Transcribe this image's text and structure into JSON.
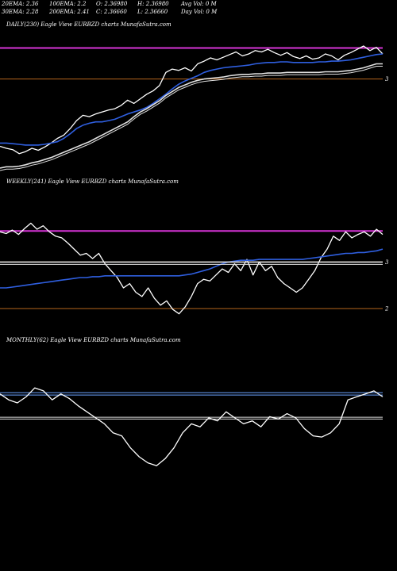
{
  "header": {
    "row1": [
      {
        "name": "ema20",
        "text": "20EMA: 2.36"
      },
      {
        "name": "ema100",
        "text": "100EMA: 2.2"
      },
      {
        "name": "open",
        "text": "O: 2.36980"
      },
      {
        "name": "high",
        "text": "H: 2.36980"
      },
      {
        "name": "avg-vol",
        "text": "Avg Vol: 0  M"
      }
    ],
    "row2": [
      {
        "name": "ema30",
        "text": "30EMA: 2.28"
      },
      {
        "name": "ema200",
        "text": "200EMA: 2.41"
      },
      {
        "name": "close",
        "text": "C: 2.36660"
      },
      {
        "name": "low",
        "text": "L: 2.36660"
      },
      {
        "name": "day-vol",
        "text": "Day Vol: 0  M"
      }
    ]
  },
  "colors": {
    "background": "#000000",
    "price": "#ffffff",
    "ema_blue": "#2f5fe0",
    "ema_white": "#e0e0e0",
    "resistance": "#d633d6",
    "support": "#b5651d",
    "monthly_band": "#6aa3ff"
  },
  "chart_data": [
    {
      "type": "line",
      "panel": "daily",
      "title": "DAILY(230) Eagle   View  EURBZD charts MunafaSutra.com",
      "ylim": [
        1.6,
        3.45
      ],
      "ticks": [
        {
          "value": 2.95,
          "label": "3"
        }
      ],
      "hlines": [
        {
          "value": 3.42,
          "color": "resistance"
        },
        {
          "value": 2.95,
          "color": "support"
        }
      ],
      "series": [
        {
          "role": "price",
          "color": "price",
          "values": [
            1.93,
            1.9,
            1.88,
            1.82,
            1.85,
            1.9,
            1.87,
            1.92,
            1.98,
            2.05,
            2.1,
            2.2,
            2.32,
            2.4,
            2.38,
            2.42,
            2.45,
            2.48,
            2.5,
            2.55,
            2.63,
            2.58,
            2.65,
            2.72,
            2.77,
            2.85,
            3.05,
            3.1,
            3.08,
            3.12,
            3.07,
            3.18,
            3.22,
            3.27,
            3.24,
            3.28,
            3.32,
            3.36,
            3.3,
            3.33,
            3.38,
            3.36,
            3.4,
            3.35,
            3.31,
            3.35,
            3.29,
            3.26,
            3.3,
            3.25,
            3.27,
            3.33,
            3.3,
            3.24,
            3.31,
            3.35,
            3.4,
            3.45,
            3.38,
            3.43,
            3.33
          ]
        },
        {
          "role": "ema-short",
          "color": "ema_blue",
          "values": [
            1.98,
            1.98,
            1.97,
            1.96,
            1.95,
            1.95,
            1.95,
            1.96,
            1.98,
            2.0,
            2.05,
            2.12,
            2.2,
            2.25,
            2.28,
            2.3,
            2.3,
            2.32,
            2.34,
            2.38,
            2.42,
            2.45,
            2.48,
            2.52,
            2.58,
            2.65,
            2.72,
            2.8,
            2.87,
            2.92,
            2.96,
            3.0,
            3.05,
            3.08,
            3.1,
            3.12,
            3.13,
            3.14,
            3.15,
            3.16,
            3.18,
            3.19,
            3.2,
            3.2,
            3.21,
            3.21,
            3.2,
            3.2,
            3.2,
            3.2,
            3.21,
            3.21,
            3.22,
            3.22,
            3.23,
            3.24,
            3.26,
            3.28,
            3.3,
            3.32,
            3.33
          ]
        },
        {
          "role": "ema-long",
          "color": "ema_white",
          "values": [
            1.6,
            1.62,
            1.62,
            1.63,
            1.65,
            1.68,
            1.7,
            1.73,
            1.76,
            1.8,
            1.84,
            1.88,
            1.92,
            1.96,
            2.0,
            2.05,
            2.1,
            2.15,
            2.2,
            2.25,
            2.3,
            2.38,
            2.45,
            2.5,
            2.56,
            2.62,
            2.7,
            2.76,
            2.82,
            2.86,
            2.9,
            2.93,
            2.95,
            2.96,
            2.97,
            2.98,
            3.0,
            3.01,
            3.02,
            3.02,
            3.03,
            3.03,
            3.04,
            3.04,
            3.04,
            3.05,
            3.05,
            3.05,
            3.05,
            3.05,
            3.05,
            3.06,
            3.06,
            3.06,
            3.07,
            3.08,
            3.1,
            3.12,
            3.15,
            3.18,
            3.18
          ]
        }
      ]
    },
    {
      "type": "line",
      "panel": "weekly",
      "title": "WEEKLY(241) Eagle   View  EURBZD charts MunafaSutra.com",
      "ylim": [
        1.85,
        3.1
      ],
      "ticks": [
        {
          "value": 2.6,
          "label": "3"
        },
        {
          "value": 2.06,
          "label": "2"
        }
      ],
      "hlines": [
        {
          "value": 2.96,
          "color": "resistance"
        },
        {
          "value": 2.6,
          "color": "support"
        },
        {
          "value": 2.06,
          "color": "support"
        }
      ],
      "series": [
        {
          "role": "price",
          "color": "price",
          "values": [
            2.95,
            2.93,
            2.97,
            2.92,
            2.99,
            3.05,
            2.98,
            3.02,
            2.95,
            2.9,
            2.88,
            2.82,
            2.75,
            2.68,
            2.7,
            2.64,
            2.7,
            2.58,
            2.5,
            2.42,
            2.3,
            2.35,
            2.25,
            2.2,
            2.3,
            2.18,
            2.1,
            2.15,
            2.05,
            2.0,
            2.08,
            2.2,
            2.35,
            2.4,
            2.38,
            2.45,
            2.52,
            2.48,
            2.58,
            2.5,
            2.63,
            2.45,
            2.6,
            2.5,
            2.55,
            2.42,
            2.35,
            2.3,
            2.25,
            2.3,
            2.4,
            2.5,
            2.65,
            2.75,
            2.9,
            2.85,
            2.95,
            2.88,
            2.92,
            2.95,
            2.9,
            2.98,
            2.92
          ]
        },
        {
          "role": "ema-short",
          "color": "ema_blue",
          "values": [
            2.3,
            2.3,
            2.31,
            2.32,
            2.33,
            2.34,
            2.35,
            2.36,
            2.37,
            2.38,
            2.39,
            2.4,
            2.41,
            2.42,
            2.42,
            2.43,
            2.43,
            2.44,
            2.44,
            2.44,
            2.44,
            2.44,
            2.44,
            2.44,
            2.44,
            2.44,
            2.44,
            2.44,
            2.44,
            2.44,
            2.45,
            2.46,
            2.48,
            2.5,
            2.52,
            2.55,
            2.58,
            2.6,
            2.61,
            2.62,
            2.62,
            2.62,
            2.63,
            2.63,
            2.63,
            2.63,
            2.63,
            2.63,
            2.63,
            2.63,
            2.64,
            2.65,
            2.66,
            2.67,
            2.68,
            2.69,
            2.7,
            2.7,
            2.71,
            2.71,
            2.72,
            2.73,
            2.75
          ]
        },
        {
          "role": "ema-long",
          "color": "ema_white",
          "values": [
            2.6,
            2.6,
            2.6,
            2.6,
            2.6,
            2.6,
            2.6,
            2.6,
            2.6,
            2.6,
            2.6,
            2.6,
            2.6,
            2.6,
            2.6,
            2.6,
            2.6,
            2.6,
            2.6,
            2.6,
            2.6,
            2.6,
            2.6,
            2.6,
            2.6,
            2.6,
            2.6,
            2.6,
            2.6,
            2.6,
            2.6,
            2.6,
            2.6,
            2.6,
            2.6,
            2.6,
            2.6,
            2.6,
            2.6,
            2.6,
            2.6,
            2.6,
            2.6,
            2.6,
            2.6,
            2.6,
            2.6,
            2.6,
            2.6,
            2.6,
            2.6,
            2.6,
            2.6,
            2.6,
            2.6,
            2.6,
            2.6,
            2.6,
            2.6,
            2.6,
            2.6,
            2.6,
            2.6
          ]
        }
      ]
    },
    {
      "type": "line",
      "panel": "monthly",
      "title": "MONTHLY(62) Eagle   View  EURBZD charts MunafaSutra.com",
      "ylim": [
        1.5,
        3.3
      ],
      "ticks": [],
      "hlines": [
        {
          "value": 3.02,
          "color": "monthly_band"
        },
        {
          "value": 2.98,
          "color": "monthly_band"
        },
        {
          "value": 2.61,
          "color": "ema_white"
        },
        {
          "value": 2.58,
          "color": "ema_white"
        }
      ],
      "series": [
        {
          "role": "price",
          "color": "price",
          "values": [
            3.0,
            2.9,
            2.85,
            2.95,
            3.1,
            3.05,
            2.9,
            3.0,
            2.92,
            2.8,
            2.7,
            2.6,
            2.5,
            2.35,
            2.3,
            2.1,
            1.95,
            1.85,
            1.8,
            1.92,
            2.1,
            2.35,
            2.5,
            2.45,
            2.6,
            2.55,
            2.7,
            2.6,
            2.5,
            2.55,
            2.45,
            2.62,
            2.58,
            2.67,
            2.6,
            2.42,
            2.3,
            2.28,
            2.35,
            2.5,
            2.9,
            2.95,
            3.0,
            3.05,
            2.95
          ]
        }
      ]
    }
  ]
}
